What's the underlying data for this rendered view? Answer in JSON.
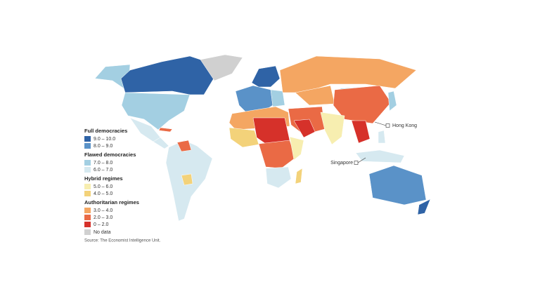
{
  "legend": {
    "groups": [
      {
        "title": "Full democracies",
        "items": [
          {
            "label": "9.0 – 10.0",
            "color": "#2f63a6"
          },
          {
            "label": "8.0 – 9.0",
            "color": "#5a92c8"
          }
        ]
      },
      {
        "title": "Flawed democracies",
        "items": [
          {
            "label": "7.0 – 8.0",
            "color": "#a3cfe2"
          },
          {
            "label": "6.0 – 7.0",
            "color": "#d6e9f0"
          }
        ]
      },
      {
        "title": "Hybrid regimes",
        "items": [
          {
            "label": "5.0 – 6.0",
            "color": "#f7eeb0"
          },
          {
            "label": "4.0 – 5.0",
            "color": "#f3d27a"
          }
        ]
      },
      {
        "title": "Authoritarian regimes",
        "items": [
          {
            "label": "3.0 – 4.0",
            "color": "#f4a662"
          },
          {
            "label": "2.0 – 3.0",
            "color": "#ea6a45"
          },
          {
            "label": "0 – 2.0",
            "color": "#d6312a"
          }
        ]
      }
    ],
    "no_data": {
      "label": "No data",
      "color": "#d0d0d0"
    }
  },
  "callouts": [
    "Hong Kong",
    "Singapore"
  ],
  "source": "Source: The Economist Intelligence Unit."
}
